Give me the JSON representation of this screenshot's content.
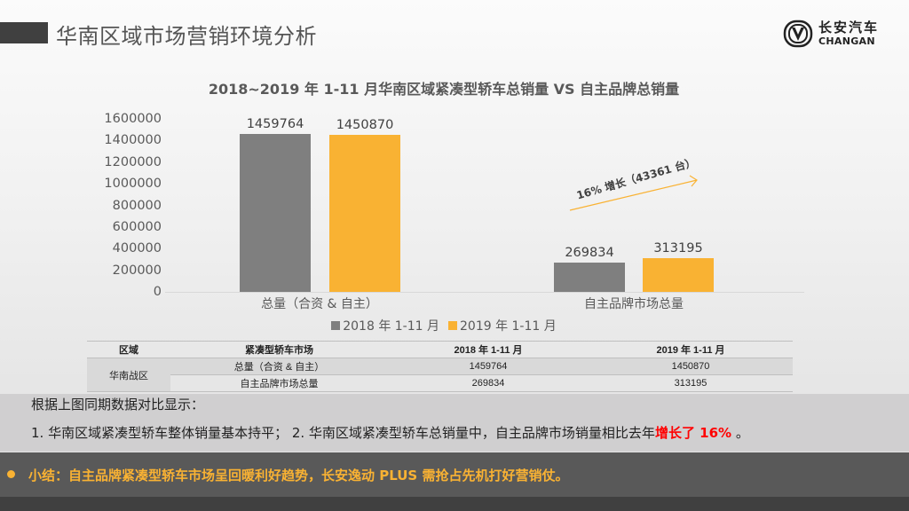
{
  "header": {
    "title": "华南区域市场营销环境分析",
    "logo_cn": "长安汽车",
    "logo_en": "CHANGAN"
  },
  "colors": {
    "series_2018": "#7f7f7f",
    "series_2019": "#f9b233",
    "highlight_red": "#ff0000",
    "conclusion_text": "#f9b233",
    "conclusion_bg": "#595959"
  },
  "chart_data": {
    "type": "bar",
    "title": "2018~2019 年 1-11 月华南区域紧凑型轿车总销量 VS 自主品牌总销量",
    "categories": [
      "总量（合资 & 自主）",
      "自主品牌市场总量"
    ],
    "series": [
      {
        "name": "2018 年 1-11 月",
        "values": [
          1459764,
          269834
        ],
        "color": "#7f7f7f"
      },
      {
        "name": "2019 年 1-11 月",
        "values": [
          1450870,
          313195
        ],
        "color": "#f9b233"
      }
    ],
    "xlabel": "",
    "ylabel": "",
    "ylim": [
      0,
      1600000
    ],
    "yticks": [
      "1600000",
      "1400000",
      "1200000",
      "1000000",
      "800000",
      "600000",
      "400000",
      "200000",
      "0"
    ],
    "grid": false,
    "legend_position": "bottom",
    "annotation": "16% 增长（43361 台）",
    "data_labels": [
      "1459764",
      "1450870",
      "269834",
      "313195"
    ]
  },
  "table": {
    "headers": [
      "区域",
      "紧凑型轿车市场",
      "2018 年 1-11 月",
      "2019 年 1-11 月"
    ],
    "region": "华南战区",
    "rows": [
      {
        "market": "总量（合资 & 自主）",
        "y2018": "1459764",
        "y2019": "1450870"
      },
      {
        "market": "自主品牌市场总量",
        "y2018": "269834",
        "y2019": "313195"
      }
    ]
  },
  "summary": {
    "intro": "根据上图同期数据对比显示：",
    "point_text": "1. 华南区域紧凑型轿车整体销量基本持平； 2. 华南区域紧凑型轿车总销量中，自主品牌市场销量相比去年",
    "point_highlight": "增长了 16%",
    "point_end": " 。"
  },
  "conclusion": {
    "text": "小结：自主品牌紧凑型轿车市场呈回暖利好趋势，长安逸动 PLUS 需抢占先机打好营销仗。"
  }
}
